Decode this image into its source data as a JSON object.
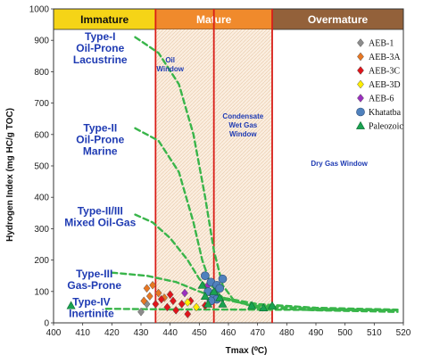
{
  "chart_data": {
    "type": "scatter",
    "xlabel": "Tmax (⁰C)",
    "ylabel": "Hydrogen Index (mg HC/g TOC)",
    "xlim": [
      400,
      520
    ],
    "ylim": [
      0,
      1000
    ],
    "x_ticks": [
      "400",
      "410",
      "420",
      "430",
      "440",
      "450",
      "460",
      "470",
      "480",
      "490",
      "500",
      "510",
      "520"
    ],
    "y_ticks": [
      "0",
      "100",
      "200",
      "300",
      "400",
      "500",
      "600",
      "700",
      "800",
      "900",
      "1000"
    ],
    "maturity_zones": [
      {
        "label": "Immature",
        "from": 400,
        "to": 435,
        "color": "#f5d417"
      },
      {
        "label": "Mature",
        "from": 435,
        "to": 475,
        "color": "#f08a2c"
      },
      {
        "label": "Overmature",
        "from": 475,
        "to": 520,
        "color": "#93613a"
      }
    ],
    "windows": [
      {
        "label_lines": [
          "Oil",
          "Window"
        ],
        "from": 435,
        "to": 455,
        "label_x": 440,
        "label_y": 830
      },
      {
        "label_lines": [
          "Condensate",
          "Wet Gas",
          "Window"
        ],
        "from": 455,
        "to": 475,
        "label_x": 465,
        "label_y": 650
      },
      {
        "label_lines": [
          "Dry Gas Window"
        ],
        "label_x": 498,
        "label_y": 500
      }
    ],
    "kerogen_types": [
      {
        "lines": [
          "Type-I",
          "Oil-Prone",
          "Lacustrine"
        ],
        "x": 416,
        "y": 900
      },
      {
        "lines": [
          "Type-II",
          "Oil-Prone",
          "Marine"
        ],
        "x": 416,
        "y": 610
      },
      {
        "lines": [
          "Type-II/III",
          "Mixed Oil-Gas"
        ],
        "x": 416,
        "y": 345
      },
      {
        "lines": [
          "Type-III",
          "Gas-Prone"
        ],
        "x": 414,
        "y": 145
      },
      {
        "lines": [
          "Type-IV",
          "Inertinite"
        ],
        "x": 413,
        "y": 55
      }
    ],
    "guide_curves": [
      {
        "points": [
          [
            428,
            910
          ],
          [
            436,
            860
          ],
          [
            443,
            760
          ],
          [
            448,
            600
          ],
          [
            452,
            400
          ],
          [
            455,
            230
          ],
          [
            458,
            120
          ],
          [
            462,
            70
          ],
          [
            470,
            48
          ],
          [
            490,
            40
          ],
          [
            518,
            35
          ]
        ]
      },
      {
        "points": [
          [
            428,
            620
          ],
          [
            436,
            580
          ],
          [
            443,
            480
          ],
          [
            448,
            320
          ],
          [
            451,
            200
          ],
          [
            454,
            120
          ],
          [
            458,
            80
          ],
          [
            468,
            55
          ],
          [
            490,
            45
          ],
          [
            518,
            40
          ]
        ]
      },
      {
        "points": [
          [
            428,
            345
          ],
          [
            434,
            320
          ],
          [
            440,
            270
          ],
          [
            446,
            200
          ],
          [
            450,
            140
          ],
          [
            454,
            100
          ],
          [
            458,
            80
          ],
          [
            470,
            60
          ],
          [
            495,
            45
          ],
          [
            518,
            40
          ]
        ]
      },
      {
        "points": [
          [
            420,
            160
          ],
          [
            432,
            150
          ],
          [
            442,
            130
          ],
          [
            450,
            100
          ],
          [
            456,
            80
          ],
          [
            466,
            60
          ],
          [
            490,
            48
          ],
          [
            518,
            42
          ]
        ]
      },
      {
        "points": [
          [
            418,
            45
          ],
          [
            440,
            43
          ],
          [
            470,
            42
          ],
          [
            518,
            40
          ]
        ]
      }
    ],
    "series": [
      {
        "name": "AEB-1",
        "marker": "diamond",
        "color": "#8c8c8c",
        "points": [
          [
            430,
            35
          ],
          [
            432,
            60
          ]
        ]
      },
      {
        "name": "AEB-3A",
        "marker": "diamond",
        "color": "#e87722",
        "points": [
          [
            432,
            110
          ],
          [
            433,
            85
          ],
          [
            431,
            70
          ],
          [
            434,
            120
          ],
          [
            436,
            95
          ],
          [
            438,
            80
          ]
        ]
      },
      {
        "name": "AEB-3C",
        "marker": "diamond",
        "color": "#e0141b",
        "points": [
          [
            435,
            60
          ],
          [
            437,
            75
          ],
          [
            439,
            50
          ],
          [
            440,
            90
          ],
          [
            442,
            40
          ],
          [
            444,
            60
          ],
          [
            446,
            28
          ],
          [
            441,
            70
          ],
          [
            447,
            70
          ],
          [
            452,
            55
          ]
        ]
      },
      {
        "name": "AEB-3D",
        "marker": "diamond",
        "color": "#ffee00",
        "points": [
          [
            446,
            65
          ],
          [
            449,
            50
          ]
        ]
      },
      {
        "name": "AEB-6",
        "marker": "diamond",
        "color": "#9b2fbf",
        "points": [
          [
            445,
            95
          ],
          [
            453,
            120
          ]
        ]
      },
      {
        "name": "Khatatba",
        "marker": "circle",
        "color": "#4f81bd",
        "points": [
          [
            452,
            150
          ],
          [
            454,
            130
          ],
          [
            456,
            120
          ],
          [
            453,
            100
          ],
          [
            455,
            90
          ],
          [
            457,
            110
          ],
          [
            458,
            140
          ],
          [
            456,
            75
          ],
          [
            454,
            70
          ]
        ]
      },
      {
        "name": "Paleozoic",
        "marker": "triangle",
        "color": "#1aa350",
        "points": [
          [
            406,
            55
          ],
          [
            451,
            120
          ],
          [
            452,
            85
          ],
          [
            453,
            60
          ],
          [
            455,
            100
          ],
          [
            457,
            80
          ],
          [
            458,
            60
          ],
          [
            468,
            55
          ],
          [
            472,
            48
          ],
          [
            475,
            55
          ]
        ]
      }
    ]
  }
}
